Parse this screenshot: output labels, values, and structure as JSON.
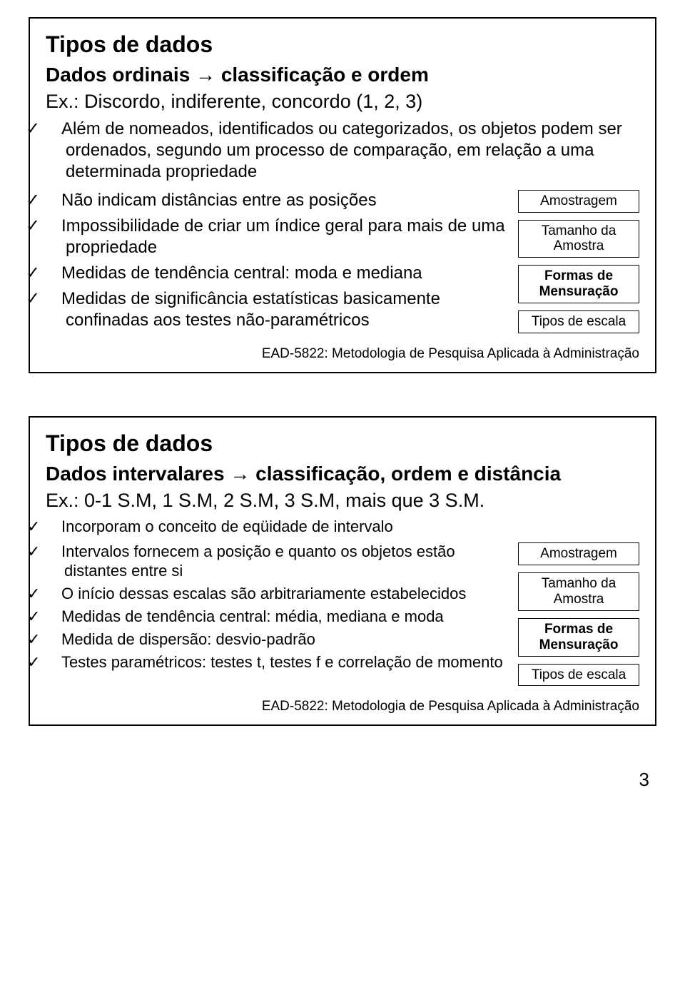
{
  "slide1": {
    "title": "Tipos de dados",
    "subtitle_pre": "Dados ordinais ",
    "subtitle_arrow": "→",
    "subtitle_post": " classificação e ordem",
    "example": "Ex.: Discordo, indiferente, concordo (1, 2, 3)",
    "bullets": [
      "Além de nomeados, identificados ou categorizados, os objetos podem ser ordenados, segundo um processo de comparação, em relação a uma determinada propriedade",
      "Não indicam distâncias entre as posições",
      "Impossibilidade de criar um índice geral para mais de uma propriedade",
      "Medidas de tendência central: moda e mediana",
      "Medidas de significância estatísticas basicamente confinadas aos testes não-paramétricos"
    ],
    "sidebox": [
      "Amostragem",
      "Tamanho da Amostra",
      "Formas de Mensuração",
      "Tipos de escala"
    ],
    "footer": "EAD-5822: Metodologia de Pesquisa Aplicada à Administração"
  },
  "slide2": {
    "title": "Tipos de dados",
    "subtitle_pre": "Dados intervalares ",
    "subtitle_arrow": "→",
    "subtitle_post": " classificação, ordem e distância",
    "example": "Ex.: 0-1 S.M, 1 S.M, 2 S.M, 3 S.M, mais que 3 S.M.",
    "bullets": [
      "Incorporam o conceito de eqüidade de intervalo",
      "Intervalos fornecem a posição e quanto os objetos estão distantes entre si",
      "O início dessas escalas são arbitrariamente estabelecidos",
      "Medidas de tendência central: média, mediana e moda",
      "Medida de dispersão: desvio-padrão",
      "Testes paramétricos: testes t, testes f e correlação de momento"
    ],
    "sidebox": [
      "Amostragem",
      "Tamanho da Amostra",
      "Formas de Mensuração",
      "Tipos de escala"
    ],
    "footer": "EAD-5822: Metodologia de Pesquisa Aplicada à Administração"
  },
  "page_number": "3",
  "checkmark": "✓"
}
